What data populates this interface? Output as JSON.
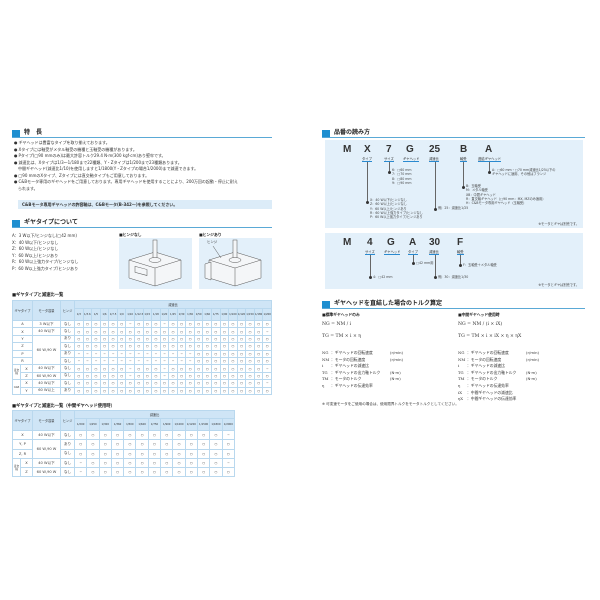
{
  "features": {
    "title": "特　長",
    "bullets": [
      "ギヤヘッドは豊富なタイプを取り揃えております。",
      "Xタイプには軸受がメタル軸受の機種と玉軸受の機種があります。",
      "Pタイプ(□90 mmのみ)は最大許容トルク29.4 N·m(300 kgf·cm)あり堅牢です。",
      "減速比は、Xタイプは1/3～1/180まで22種類、Y・Zタイプは1/200まで23種類あります。",
      "□90 mmのXタイプ、Zタイプには直交軸タイプもご用意しております。",
      "C&Bモータ専用のギヤヘッドをご用意しております。専用ギヤヘッドを使用することにより、200万回の起動・停止に耐え"
    ],
    "continuation_4": "中間ギヤヘッド(減速比1/10)を使用しますと1/1800(Y・Zタイプの場合1/2000)まで減速できます。",
    "continuation_6": "られます。",
    "note": "C&Bモータ専用ギヤヘッドの許容軸は、C&Bモータ(B-342～)を参照してください。"
  },
  "gear_types": {
    "title": "ギヤタイプについて",
    "items": [
      "A：3 W以下/ヒンジなし(□42 mm)",
      "X：40 W以下/ヒンジなし",
      "Z：60 W以上/ヒンジなし",
      "Y：60 W以上/ヒンジあり",
      "R：60 W以上強力タイプ/ヒンジなし",
      "P：60 W以上強力タイプ/ヒンジあり"
    ],
    "image_no_hinge_label": "■ヒンジなし",
    "image_hinge_label": "■ヒンジあり",
    "hinge_callout": "ヒンジ"
  },
  "table1": {
    "title": "■ギヤタイプと減速比一覧",
    "headers": {
      "type": "ギヤタイプ",
      "motor": "モータ容量",
      "hinge": "ヒンジ",
      "ratio": "減速比"
    },
    "ratios": [
      "1/3",
      "1/3.6",
      "1/5",
      "1/6",
      "1/7.5",
      "1/9",
      "1/10",
      "1/12.5",
      "1/15",
      "1/18",
      "1/20",
      "1/25",
      "1/30",
      "1/36",
      "1/50",
      "1/60",
      "1/75",
      "1/90",
      "1/100",
      "1/120",
      "1/150",
      "1/180",
      "1/200"
    ],
    "rows": [
      {
        "group": "",
        "type": "A",
        "motor": "3 W以下",
        "hinge": "なし",
        "values": [
          "○",
          "○",
          "○",
          "○",
          "○",
          "○",
          "−",
          "○",
          "○",
          "○",
          "−",
          "○",
          "○",
          "○",
          "○",
          "○",
          "○",
          "○",
          "○",
          "○",
          "○",
          "○",
          "○"
        ]
      },
      {
        "group": "",
        "type": "X",
        "motor": "40 W以下",
        "hinge": "なし",
        "values": [
          "○",
          "○",
          "○",
          "○",
          "○",
          "○",
          "○",
          "○",
          "○",
          "○",
          "○",
          "○",
          "○",
          "○",
          "○",
          "○",
          "○",
          "○",
          "○",
          "○",
          "○",
          "○",
          "−"
        ]
      },
      {
        "group": "",
        "type": "Y",
        "motor": "60 W,90 W",
        "hinge": "あり",
        "values": [
          "○",
          "○",
          "○",
          "○",
          "○",
          "○",
          "○",
          "○",
          "○",
          "○",
          "○",
          "○",
          "○",
          "○",
          "○",
          "○",
          "○",
          "○",
          "○",
          "○",
          "○",
          "○",
          "○"
        ]
      },
      {
        "group": "",
        "type": "Z",
        "motor": null,
        "hinge": "なし",
        "values": [
          "○",
          "○",
          "○",
          "○",
          "○",
          "○",
          "○",
          "○",
          "○",
          "○",
          "○",
          "○",
          "○",
          "○",
          "○",
          "○",
          "○",
          "○",
          "○",
          "○",
          "○",
          "○",
          "○"
        ]
      },
      {
        "group": "",
        "type": "P",
        "motor": null,
        "hinge": "あり",
        "values": [
          "−",
          "−",
          "−",
          "−",
          "−",
          "−",
          "−",
          "−",
          "−",
          "−",
          "−",
          "−",
          "−",
          "−",
          "○",
          "○",
          "○",
          "○",
          "○",
          "○",
          "○",
          "○",
          "○"
        ]
      },
      {
        "group": "",
        "type": "R",
        "motor": null,
        "hinge": "なし",
        "values": [
          "−",
          "−",
          "−",
          "−",
          "−",
          "−",
          "−",
          "−",
          "−",
          "−",
          "−",
          "−",
          "−",
          "−",
          "○",
          "○",
          "○",
          "○",
          "○",
          "○",
          "○",
          "○",
          "○"
        ]
      },
      {
        "group": "直交軸",
        "type": "X",
        "motor": "40 W以下",
        "hinge": "なし",
        "values": [
          "○",
          "○",
          "○",
          "○",
          "○",
          "○",
          "−",
          "○",
          "○",
          "○",
          "−",
          "○",
          "○",
          "○",
          "○",
          "○",
          "○",
          "○",
          "○",
          "○",
          "○",
          "○",
          "−"
        ]
      },
      {
        "group": "直交軸",
        "type": "Z",
        "motor": "60 W,90 W",
        "hinge": "なし",
        "values": [
          "○",
          "○",
          "○",
          "○",
          "○",
          "○",
          "−",
          "○",
          "○",
          "○",
          "−",
          "○",
          "○",
          "○",
          "○",
          "○",
          "○",
          "○",
          "○",
          "○",
          "○",
          "○",
          "○"
        ]
      },
      {
        "group": "C&B",
        "type": "X",
        "motor": "40 W以下",
        "hinge": "なし",
        "values": [
          "○",
          "○",
          "○",
          "○",
          "○",
          "○",
          "○",
          "○",
          "○",
          "○",
          "○",
          "○",
          "○",
          "○",
          "○",
          "○",
          "○",
          "○",
          "○",
          "○",
          "○",
          "○",
          "−"
        ]
      },
      {
        "group": "C&B",
        "type": "Y",
        "motor": "60 W以上",
        "hinge": "あり",
        "values": [
          "○",
          "○",
          "○",
          "○",
          "○",
          "○",
          "○",
          "○",
          "○",
          "○",
          "○",
          "○",
          "○",
          "○",
          "○",
          "○",
          "○",
          "○",
          "○",
          "○",
          "○",
          "○",
          "○"
        ]
      }
    ]
  },
  "table2": {
    "title": "■ギヤタイプと減速比一覧（中間ギヤヘッド使用時）",
    "headers": {
      "type": "ギヤタイプ",
      "motor": "モータ容量",
      "hinge": "ヒンジ",
      "ratio": "減速比"
    },
    "ratios": [
      "1/200",
      "1/250",
      "1/300",
      "1/360",
      "1/500",
      "1/600",
      "1/750",
      "1/900",
      "1/1000",
      "1/1200",
      "1/1500",
      "1/1800",
      "1/2000"
    ],
    "rows": [
      {
        "group": "",
        "type": "X",
        "motor": "40 W以下",
        "hinge": "なし",
        "values": [
          "○",
          "○",
          "○",
          "○",
          "○",
          "○",
          "○",
          "○",
          "○",
          "○",
          "○",
          "○",
          "−"
        ]
      },
      {
        "group": "",
        "type": "Y, P",
        "motor": "60 W,90 W",
        "hinge": "あり",
        "values": [
          "○",
          "○",
          "○",
          "○",
          "○",
          "○",
          "○",
          "○",
          "○",
          "○",
          "○",
          "○",
          "○"
        ]
      },
      {
        "group": "",
        "type": "Z, R",
        "motor": null,
        "hinge": "なし",
        "values": [
          "○",
          "○",
          "○",
          "○",
          "○",
          "○",
          "○",
          "○",
          "○",
          "○",
          "○",
          "○",
          "○"
        ]
      },
      {
        "group": "直交軸",
        "type": "X",
        "motor": "40 W以下",
        "hinge": "なし",
        "values": [
          "−",
          "○",
          "○",
          "○",
          "○",
          "○",
          "○",
          "○",
          "○",
          "○",
          "○",
          "○",
          "−"
        ]
      },
      {
        "group": "直交軸",
        "type": "Z",
        "motor": "60 W,90 W",
        "hinge": "なし",
        "values": [
          "−",
          "○",
          "○",
          "○",
          "○",
          "○",
          "○",
          "○",
          "○",
          "○",
          "○",
          "○",
          "○"
        ]
      }
    ]
  },
  "part_number": {
    "title": "品番の読み方",
    "example1": {
      "chars": [
        "M",
        "X",
        "7",
        "G",
        "25",
        "B",
        "A"
      ],
      "labels": {
        "type": "タイプ",
        "size": "サイズ",
        "gearhead": "ギヤヘッド",
        "ratio": "減速比",
        "bearing": "軸受",
        "coupling": "連結ギヤヘッド"
      },
      "size_items": [
        "6：□60 mm",
        "7：□70 mm",
        "8：□80 mm",
        "9：□90 mm"
      ],
      "type_items": [
        "X：40 W以下/ヒンジなし",
        "Z：60 W以上/ヒンジなし",
        "Y：60 W以上/ヒンジあり",
        "R：60 W以上強力タイプ/ヒンジなし",
        "P：60 W以上強力タイプ/ヒンジあり"
      ],
      "ratio_item": "例）25：減速比1/25",
      "bearing_items": [
        "B：玉軸受",
        "M：メタル軸受",
        "XB：中間ギヤヘッド",
        "R：直交軸ギヤヘッド（□90 mm：MX, MZのみ適用）",
        "H：C&Bモータ専用ギヤヘッド（玉軸受）"
      ],
      "coupling_items": [
        "A：□60 mm・□70 mm減速比1/25以下の",
        "ギヤヘッドに適用、その他はフランジ"
      ],
      "footnote": "※モータとギヤは別売です。"
    },
    "example2": {
      "chars": [
        "M",
        "4",
        "G",
        "A",
        "30",
        "F"
      ],
      "labels": {
        "size": "サイズ",
        "gearhead": "ギヤヘッド",
        "type": "タイプ",
        "ratio": "減速比",
        "bearing": "軸受"
      },
      "type_item": "□42 mm用",
      "bearing_item": "F：玉軸受＋メタル軸受",
      "size_item": "4：□42 mm",
      "ratio_item": "例）30：減速比1/30",
      "footnote": "※モータとギヤは別売です。"
    }
  },
  "torque": {
    "title": "ギヤヘッドを直結した場合のトルク算定",
    "standard": {
      "title": "■標準ギヤヘッドのみ",
      "formula1_left": "N",
      "formula1": "NG = NM / i",
      "formula2": "TG = TM × i × η",
      "defs": [
        {
          "sym": "NG",
          "text": "：ギヤヘッドの回転速度",
          "unit": "(r/min)"
        },
        {
          "sym": "NM",
          "text": "：モータの回転速度",
          "unit": "(r/min)"
        },
        {
          "sym": "i",
          "text": "：ギヤヘッドの減速比",
          "unit": ""
        },
        {
          "sym": "TG",
          "text": "：ギヤヘッドの出力軸トルク",
          "unit": "(N·m)"
        },
        {
          "sym": "TM",
          "text": "：モータのトルク",
          "unit": "(N·m)"
        },
        {
          "sym": "η",
          "text": "：ギヤヘッドの伝達効率",
          "unit": ""
        }
      ]
    },
    "intermediate": {
      "title": "■中間ギヤヘッド使用時",
      "formula1": "NG = NM / (i × iX)",
      "formula2": "TG = TM × i × iX × η × ηX",
      "defs": [
        {
          "sym": "NG",
          "text": "：ギヤヘッドの回転速度",
          "unit": "(r/min)"
        },
        {
          "sym": "NM",
          "text": "：モータの回転速度",
          "unit": "(r/min)"
        },
        {
          "sym": "i",
          "text": "：ギヤヘッドの減速比",
          "unit": ""
        },
        {
          "sym": "TG",
          "text": "：ギヤヘッドの出力軸トルク",
          "unit": "(N·m)"
        },
        {
          "sym": "TM",
          "text": "：モータのトルク",
          "unit": "(N·m)"
        },
        {
          "sym": "η",
          "text": "：ギヤヘッドの伝達効率",
          "unit": ""
        },
        {
          "sym": "iX",
          "text": "：中間ギヤヘッドの減速比",
          "unit": ""
        },
        {
          "sym": "ηX",
          "text": "：中間ギヤヘッドの伝達効率",
          "unit": ""
        }
      ]
    },
    "footnote": "※ 可変速モータをご使用の場合は、使用限界トルクをモータトルクとしてください。"
  },
  "colors": {
    "accent": "#1f8fd0",
    "panel": "#e3f0fa",
    "table_header": "#cfe5f6"
  }
}
